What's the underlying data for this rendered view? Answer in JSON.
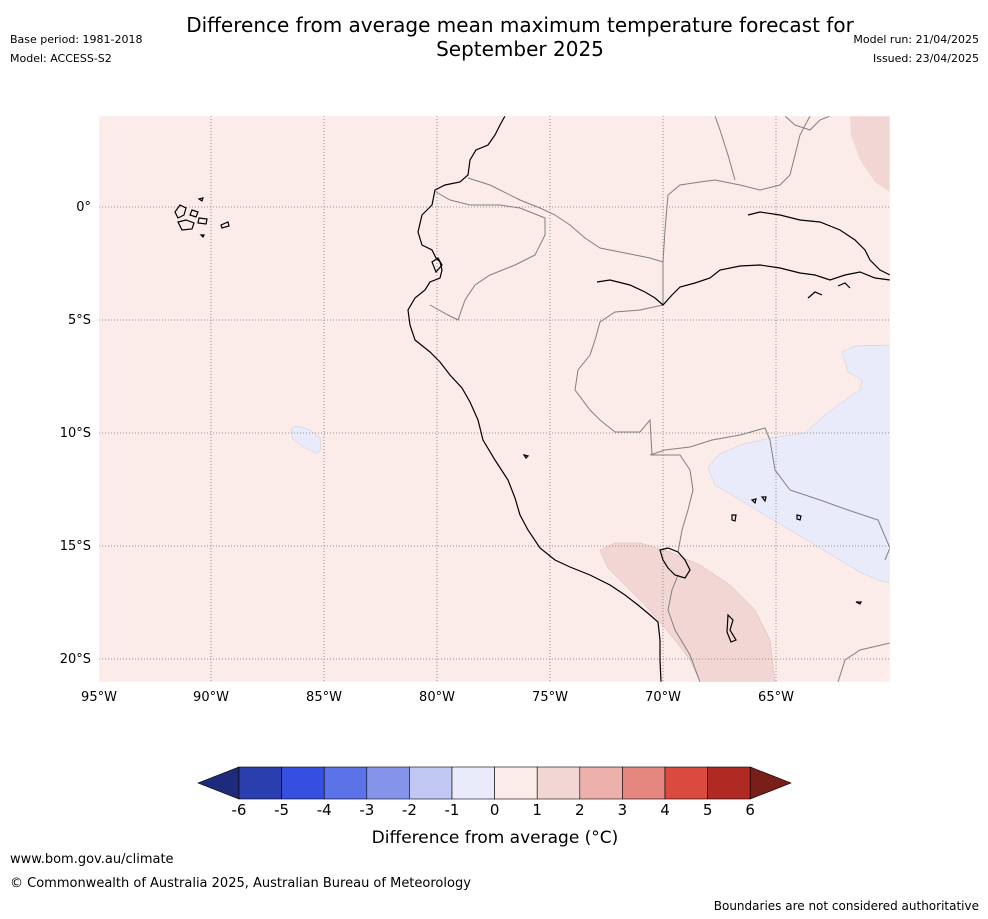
{
  "header": {
    "title_line1": "Difference from average mean maximum temperature forecast for",
    "title_line2": "September 2025",
    "base_period": "Base period: 1981-2018",
    "model": "Model: ACCESS-S2",
    "model_run": "Model run: 21/04/2025",
    "issued": "Issued: 23/04/2025"
  },
  "map": {
    "longitude_labels": [
      "95°W",
      "90°W",
      "85°W",
      "80°W",
      "75°W",
      "70°W",
      "65°W"
    ],
    "latitude_labels": [
      "0°",
      "5°S",
      "10°S",
      "15°S",
      "20°S"
    ],
    "background_anomaly_range": "0 to 1",
    "colors": {
      "ocean_fill": "#fbebe9",
      "warm_patch": "#f2d6d4",
      "cool_patch": "#e9ebfa",
      "coast": "#000000",
      "border": "#808080",
      "grid": "#777777"
    }
  },
  "colorbar": {
    "ticks": [
      "-6",
      "-5",
      "-4",
      "-3",
      "-2",
      "-1",
      "0",
      "1",
      "2",
      "3",
      "4",
      "5",
      "6"
    ],
    "colors": [
      "#1e2b7a",
      "#2a3eae",
      "#3550e0",
      "#5b73e6",
      "#8594ea",
      "#c1c8f3",
      "#e9ebfa",
      "#fbebe9",
      "#f2d6d4",
      "#eeb0ab",
      "#e6877f",
      "#db4a3e",
      "#ae2a22",
      "#7a1e1a"
    ],
    "label": "Difference from average (°C)"
  },
  "footer": {
    "website": "www.bom.gov.au/climate",
    "copyright": "© Commonwealth of Australia 2025, Australian Bureau of Meteorology",
    "disclaimer": "Boundaries are not considered authoritative"
  }
}
